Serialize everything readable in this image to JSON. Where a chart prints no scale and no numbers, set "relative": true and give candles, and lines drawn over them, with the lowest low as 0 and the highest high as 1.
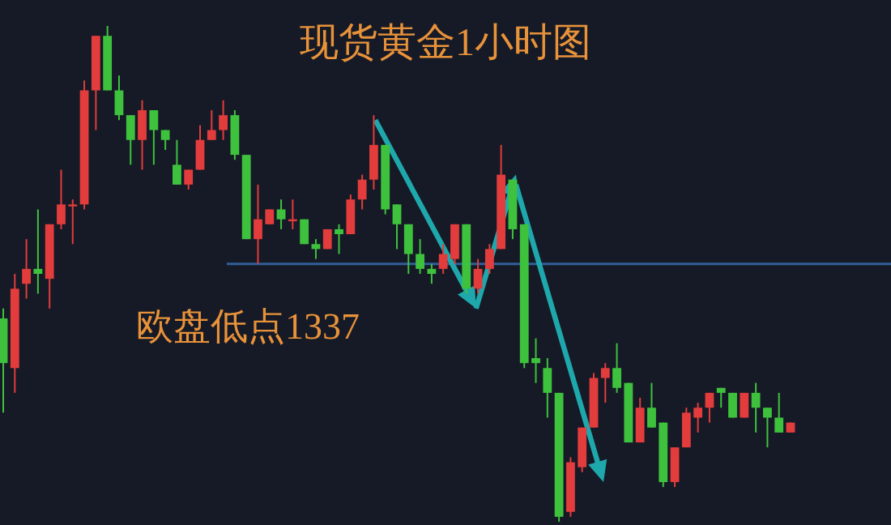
{
  "chart_data": {
    "type": "candlestick",
    "title": "现货黄金1小时图",
    "relative": true,
    "categories": [
      null,
      null,
      null,
      null,
      null,
      null,
      null,
      null,
      null,
      null,
      null,
      null,
      null,
      null,
      null,
      null,
      null,
      null,
      null,
      null,
      null,
      null,
      null,
      null,
      null,
      null,
      null,
      null,
      null,
      null,
      null,
      null,
      null,
      null,
      null,
      null,
      null,
      null,
      null,
      null,
      null,
      null,
      null,
      null,
      null,
      null,
      null,
      null,
      null,
      null,
      null,
      null,
      null,
      null,
      null,
      null,
      null,
      null,
      null,
      null,
      null,
      null,
      null,
      null,
      null,
      null,
      null,
      null,
      null
    ],
    "ohlc": [
      [
        0.41,
        0.43,
        0.22,
        0.32
      ],
      [
        0.31,
        0.5,
        0.26,
        0.47
      ],
      [
        0.48,
        0.57,
        0.45,
        0.51
      ],
      [
        0.51,
        0.63,
        0.46,
        0.5
      ],
      [
        0.49,
        0.6,
        0.43,
        0.6
      ],
      [
        0.6,
        0.71,
        0.59,
        0.64
      ],
      [
        0.64,
        0.65,
        0.56,
        0.64
      ],
      [
        0.64,
        0.89,
        0.63,
        0.87
      ],
      [
        0.87,
        0.98,
        0.79,
        0.98
      ],
      [
        0.98,
        1.0,
        0.87,
        0.87
      ],
      [
        0.87,
        0.9,
        0.81,
        0.82
      ],
      [
        0.82,
        0.82,
        0.72,
        0.77
      ],
      [
        0.77,
        0.85,
        0.71,
        0.83
      ],
      [
        0.83,
        0.83,
        0.72,
        0.79
      ],
      [
        0.79,
        0.79,
        0.75,
        0.77
      ],
      [
        0.72,
        0.77,
        0.68,
        0.68
      ],
      [
        0.68,
        0.71,
        0.67,
        0.71
      ],
      [
        0.71,
        0.8,
        0.71,
        0.77
      ],
      [
        0.77,
        0.83,
        0.77,
        0.79
      ],
      [
        0.79,
        0.85,
        0.77,
        0.82
      ],
      [
        0.82,
        0.83,
        0.73,
        0.74
      ],
      [
        0.74,
        0.74,
        0.57,
        0.57
      ],
      [
        0.57,
        0.68,
        0.52,
        0.61
      ],
      [
        0.6,
        0.63,
        0.6,
        0.63
      ],
      [
        0.63,
        0.65,
        0.59,
        0.61
      ],
      [
        0.61,
        0.65,
        0.59,
        0.61
      ],
      [
        0.61,
        0.61,
        0.56,
        0.56
      ],
      [
        0.56,
        0.57,
        0.53,
        0.55
      ],
      [
        0.55,
        0.59,
        0.55,
        0.59
      ],
      [
        0.59,
        0.6,
        0.54,
        0.58
      ],
      [
        0.58,
        0.66,
        0.58,
        0.65
      ],
      [
        0.65,
        0.7,
        0.63,
        0.69
      ],
      [
        0.69,
        0.82,
        0.67,
        0.76
      ],
      [
        0.76,
        0.76,
        0.62,
        0.63
      ],
      [
        0.64,
        0.64,
        0.55,
        0.6
      ],
      [
        0.6,
        0.6,
        0.5,
        0.54
      ],
      [
        0.54,
        0.57,
        0.5,
        0.51
      ],
      [
        0.51,
        0.52,
        0.48,
        0.5
      ],
      [
        0.51,
        0.56,
        0.5,
        0.54
      ],
      [
        0.53,
        0.6,
        0.52,
        0.6
      ],
      [
        0.6,
        0.6,
        0.46,
        0.47
      ],
      [
        0.47,
        0.53,
        0.46,
        0.51
      ],
      [
        0.51,
        0.56,
        0.5,
        0.55
      ],
      [
        0.55,
        0.76,
        0.55,
        0.7
      ],
      [
        0.69,
        0.69,
        0.57,
        0.59
      ],
      [
        0.6,
        0.6,
        0.31,
        0.32
      ],
      [
        0.33,
        0.37,
        0.28,
        0.32
      ],
      [
        0.31,
        0.33,
        0.21,
        0.26
      ],
      [
        0.26,
        0.26,
        0.0,
        0.01
      ],
      [
        0.02,
        0.13,
        0.01,
        0.12
      ],
      [
        0.11,
        0.19,
        0.1,
        0.19
      ],
      [
        0.19,
        0.3,
        0.19,
        0.29
      ],
      [
        0.29,
        0.32,
        0.24,
        0.31
      ],
      [
        0.31,
        0.36,
        0.26,
        0.27
      ],
      [
        0.28,
        0.28,
        0.16,
        0.16
      ],
      [
        0.16,
        0.25,
        0.16,
        0.23
      ],
      [
        0.23,
        0.28,
        0.19,
        0.19
      ],
      [
        0.2,
        0.2,
        0.07,
        0.08
      ],
      [
        0.08,
        0.15,
        0.07,
        0.15
      ],
      [
        0.15,
        0.23,
        0.15,
        0.22
      ],
      [
        0.21,
        0.24,
        0.18,
        0.23
      ],
      [
        0.23,
        0.26,
        0.2,
        0.26
      ],
      [
        0.27,
        0.27,
        0.23,
        0.26
      ],
      [
        0.26,
        0.26,
        0.21,
        0.21
      ],
      [
        0.21,
        0.26,
        0.21,
        0.26
      ],
      [
        0.26,
        0.28,
        0.18,
        0.23
      ],
      [
        0.23,
        0.23,
        0.15,
        0.21
      ],
      [
        0.21,
        0.26,
        0.18,
        0.18
      ],
      [
        0.18,
        0.2,
        0.18,
        0.2
      ]
    ],
    "ref_lines": [
      {
        "axis": "y",
        "value": 0.52,
        "label": "欧盘低点1337",
        "color": "#2f5f9a"
      }
    ]
  }
}
